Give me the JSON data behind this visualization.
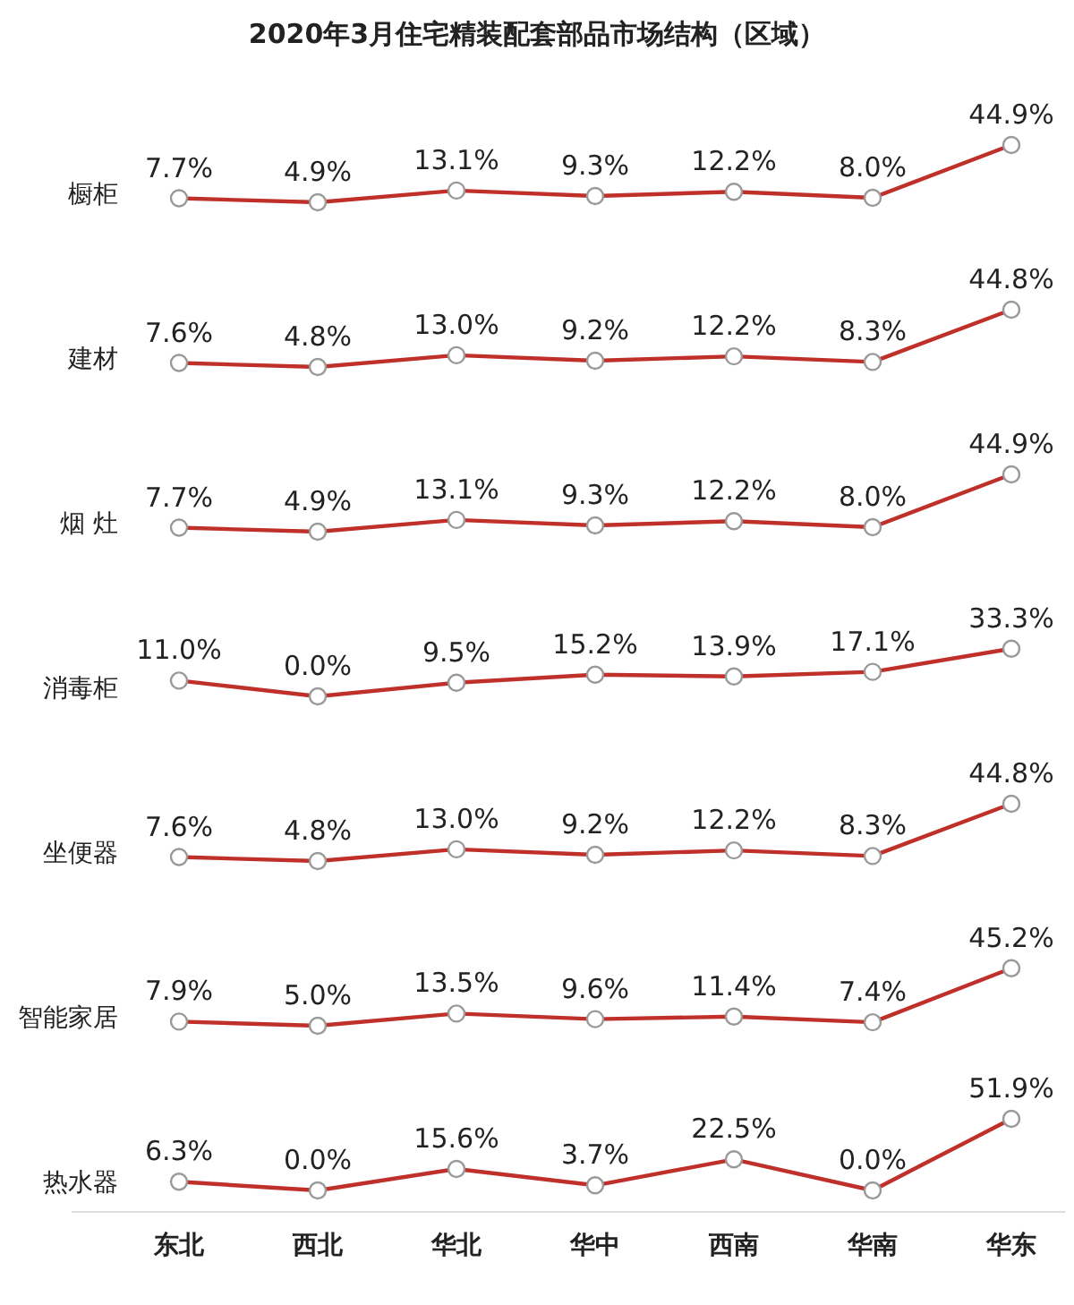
{
  "chart_data": [
    {
      "type": "line",
      "title": "2020年3月住宅精装配套部品市场结构（区域）",
      "ylabel": "橱柜",
      "tick_labels": false,
      "marker": "circle",
      "series": [
        {
          "color": "#c0302b",
          "values": [
            7.7,
            4.9,
            13.1,
            9.3,
            12.2,
            8.0,
            44.9
          ],
          "value_labels": [
            "7.7%",
            "4.9%",
            "13.1%",
            "9.3%",
            "12.2%",
            "8.0%",
            "44.9%"
          ]
        }
      ]
    },
    {
      "type": "line",
      "ylabel": "建材",
      "tick_labels": false,
      "marker": "circle",
      "series": [
        {
          "color": "#c0302b",
          "values": [
            7.6,
            4.8,
            13.0,
            9.2,
            12.2,
            8.3,
            44.8
          ],
          "value_labels": [
            "7.6%",
            "4.8%",
            "13.0%",
            "9.2%",
            "12.2%",
            "8.3%",
            "44.8%"
          ]
        }
      ]
    },
    {
      "type": "line",
      "ylabel": "烟 灶",
      "tick_labels": false,
      "marker": "circle",
      "series": [
        {
          "color": "#c0302b",
          "values": [
            7.7,
            4.9,
            13.1,
            9.3,
            12.2,
            8.0,
            44.9
          ],
          "value_labels": [
            "7.7%",
            "4.9%",
            "13.1%",
            "9.3%",
            "12.2%",
            "8.0%",
            "44.9%"
          ]
        }
      ]
    },
    {
      "type": "line",
      "ylabel": "消毒柜",
      "tick_labels": false,
      "marker": "circle",
      "series": [
        {
          "color": "#c0302b",
          "values": [
            11.0,
            0.0,
            9.5,
            15.2,
            13.9,
            17.1,
            33.3
          ],
          "value_labels": [
            "11.0%",
            "0.0%",
            "9.5%",
            "15.2%",
            "13.9%",
            "17.1%",
            "33.3%"
          ]
        }
      ]
    },
    {
      "type": "line",
      "ylabel": "坐便器",
      "tick_labels": false,
      "marker": "circle",
      "series": [
        {
          "color": "#c0302b",
          "values": [
            7.6,
            4.8,
            13.0,
            9.2,
            12.2,
            8.3,
            44.8
          ],
          "value_labels": [
            "7.6%",
            "4.8%",
            "13.0%",
            "9.2%",
            "12.2%",
            "8.3%",
            "44.8%"
          ]
        }
      ]
    },
    {
      "type": "line",
      "ylabel": "智能家居",
      "tick_labels": false,
      "marker": "circle",
      "series": [
        {
          "color": "#c0302b",
          "values": [
            7.9,
            5.0,
            13.5,
            9.6,
            11.4,
            7.4,
            45.2
          ],
          "value_labels": [
            "7.9%",
            "5.0%",
            "13.5%",
            "9.6%",
            "11.4%",
            "7.4%",
            "45.2%"
          ]
        }
      ]
    },
    {
      "type": "line",
      "ylabel": "热水器",
      "categories": [
        "东北",
        "西北",
        "华北",
        "华中",
        "西南",
        "华南",
        "华东"
      ],
      "tick_labels": "x",
      "marker": "circle",
      "series": [
        {
          "color": "#c0302b",
          "values": [
            6.3,
            0.0,
            15.6,
            3.7,
            22.5,
            0.0,
            51.9
          ],
          "value_labels": [
            "6.3%",
            "0.0%",
            "15.6%",
            "3.7%",
            "22.5%",
            "0.0%",
            "51.9%"
          ]
        }
      ]
    }
  ]
}
